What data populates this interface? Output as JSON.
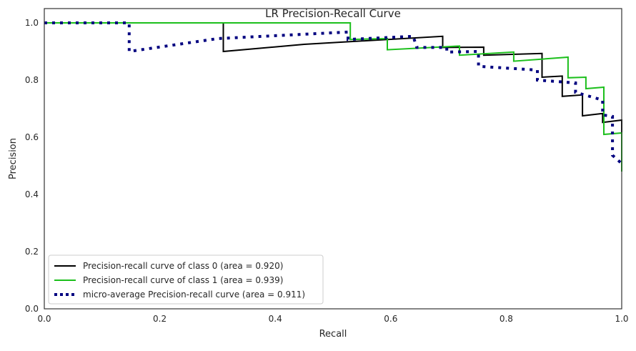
{
  "chart_data": {
    "type": "line",
    "title": "LR Precision-Recall Curve",
    "xlabel": "Recall",
    "ylabel": "Precision",
    "xlim": [
      0,
      1
    ],
    "ylim": [
      0,
      1.05
    ],
    "xticks": [
      "0.0",
      "0.2",
      "0.4",
      "0.6",
      "0.8",
      "1.0"
    ],
    "yticks": [
      "0.0",
      "0.2",
      "0.4",
      "0.6",
      "0.8",
      "1.0"
    ],
    "grid": false,
    "legend_position": "lower-left",
    "series": [
      {
        "name": "Precision-recall curve of class 0 (area = 0.920)",
        "color": "#000000",
        "style": "solid",
        "points": [
          [
            0,
            1
          ],
          [
            0.31,
            1
          ],
          [
            0.31,
            0.9
          ],
          [
            0.45,
            0.925
          ],
          [
            0.69,
            0.953
          ],
          [
            0.69,
            0.914
          ],
          [
            0.761,
            0.915
          ],
          [
            0.761,
            0.887
          ],
          [
            0.862,
            0.893
          ],
          [
            0.862,
            0.81
          ],
          [
            0.897,
            0.814
          ],
          [
            0.897,
            0.743
          ],
          [
            0.932,
            0.748
          ],
          [
            0.932,
            0.675
          ],
          [
            0.967,
            0.683
          ],
          [
            0.967,
            0.652
          ],
          [
            1.0,
            0.66
          ],
          [
            1.0,
            0.48
          ]
        ]
      },
      {
        "name": "Precision-recall curve of class 1 (area = 0.939)",
        "color": "#1cbf1c",
        "style": "solid",
        "points": [
          [
            0,
            1
          ],
          [
            0.53,
            1
          ],
          [
            0.53,
            0.942
          ],
          [
            0.594,
            0.945
          ],
          [
            0.594,
            0.906
          ],
          [
            0.719,
            0.919
          ],
          [
            0.719,
            0.887
          ],
          [
            0.813,
            0.898
          ],
          [
            0.813,
            0.866
          ],
          [
            0.907,
            0.88
          ],
          [
            0.907,
            0.808
          ],
          [
            0.938,
            0.81
          ],
          [
            0.938,
            0.77
          ],
          [
            0.969,
            0.775
          ],
          [
            0.969,
            0.61
          ],
          [
            1.0,
            0.615
          ],
          [
            1.0,
            0.48
          ]
        ]
      },
      {
        "name": "micro-average Precision-recall curve (area = 0.911)",
        "color": "#000080",
        "style": "dotted",
        "points": [
          [
            0,
            1
          ],
          [
            0.147,
            1
          ],
          [
            0.147,
            0.9
          ],
          [
            0.3,
            0.945
          ],
          [
            0.526,
            0.968
          ],
          [
            0.526,
            0.942
          ],
          [
            0.639,
            0.953
          ],
          [
            0.645,
            0.914
          ],
          [
            0.697,
            0.914
          ],
          [
            0.697,
            0.898
          ],
          [
            0.752,
            0.9
          ],
          [
            0.752,
            0.848
          ],
          [
            0.854,
            0.835
          ],
          [
            0.854,
            0.8
          ],
          [
            0.92,
            0.79
          ],
          [
            0.92,
            0.757
          ],
          [
            0.967,
            0.73
          ],
          [
            0.967,
            0.678
          ],
          [
            0.984,
            0.673
          ],
          [
            0.984,
            0.537
          ],
          [
            1.0,
            0.508
          ],
          [
            1.0,
            0.5
          ]
        ]
      }
    ]
  }
}
